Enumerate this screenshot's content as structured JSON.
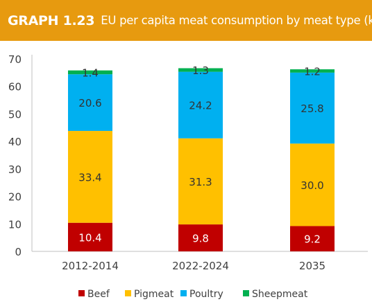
{
  "header": {
    "graph_number": "GRAPH 1.23",
    "title": "EU per capita meat consumption by meat type (kg)"
  },
  "colors": {
    "header_bg": "#e79a0f",
    "beef": "#c00000",
    "pigmeat": "#ffc000",
    "poultry": "#00b0f0",
    "sheepmeat": "#00b050"
  },
  "chart_data": {
    "type": "bar",
    "stacked": true,
    "categories": [
      "2012-2014",
      "2022-2024",
      "2035"
    ],
    "series": [
      {
        "name": "Beef",
        "values": [
          10.4,
          9.8,
          9.2
        ],
        "labels": [
          "10.4",
          "9.8",
          "9.2"
        ],
        "color": "#c00000",
        "label_color": "#ffffff"
      },
      {
        "name": "Pigmeat",
        "values": [
          33.4,
          31.3,
          30.0
        ],
        "labels": [
          "33.4",
          "31.3",
          "30.0"
        ],
        "color": "#ffc000",
        "label_color": "#333333"
      },
      {
        "name": "Poultry",
        "values": [
          20.6,
          24.2,
          25.8
        ],
        "labels": [
          "20.6",
          "24.2",
          "25.8"
        ],
        "color": "#00b0f0",
        "label_color": "#333333"
      },
      {
        "name": "Sheepmeat",
        "values": [
          1.4,
          1.3,
          1.2
        ],
        "labels": [
          "1.4",
          "1.3",
          "1.2"
        ],
        "color": "#00b050",
        "label_color": "#333333"
      }
    ],
    "ylim": [
      0,
      70
    ],
    "yticks": [
      "0",
      "10",
      "20",
      "30",
      "40",
      "50",
      "60",
      "70"
    ],
    "grid": false,
    "legend": "bottom"
  }
}
